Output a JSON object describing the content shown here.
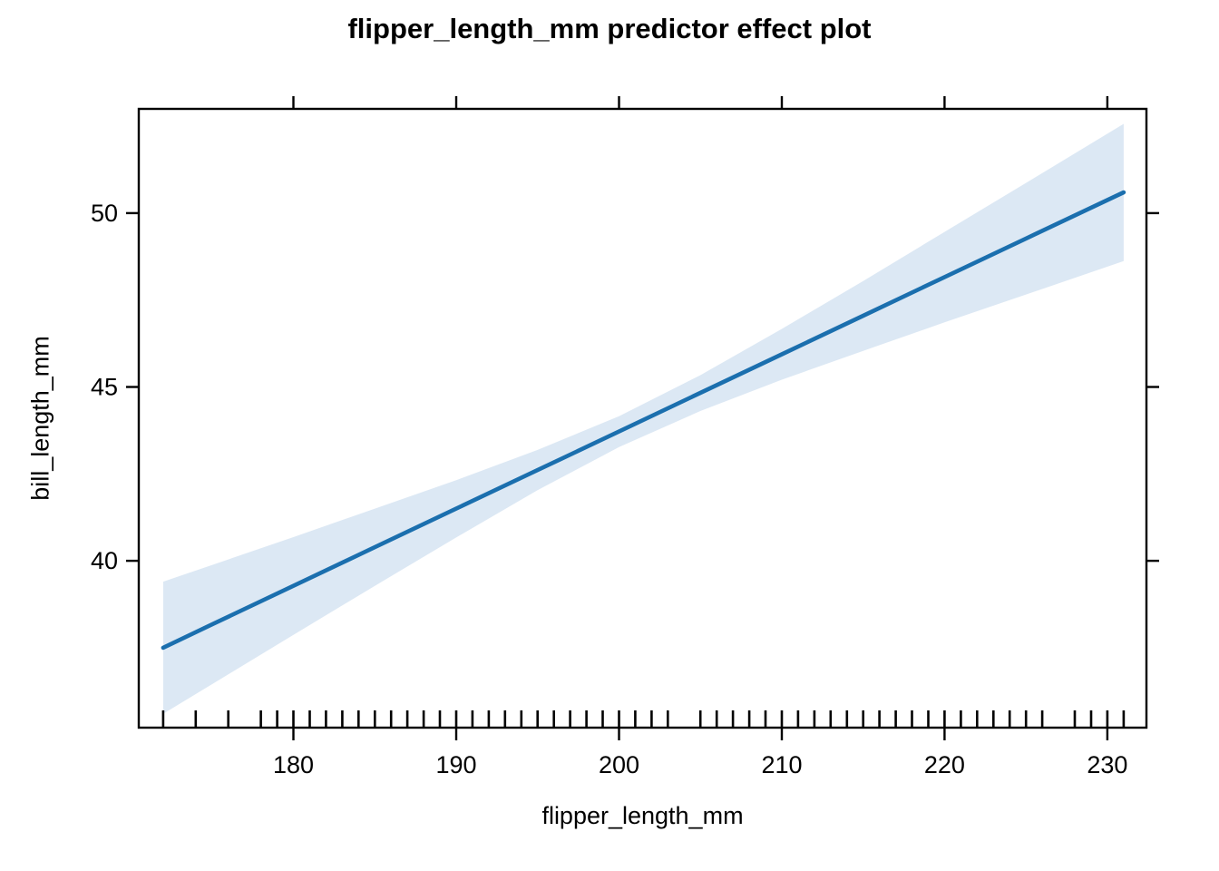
{
  "chart_data": {
    "type": "line",
    "title": "flipper_length_mm predictor effect plot",
    "xlabel": "flipper_length_mm",
    "ylabel": "bill_length_mm",
    "xlim": [
      170.5,
      232.4
    ],
    "ylim": [
      35.2,
      53.0
    ],
    "x_ticks": [
      180,
      190,
      200,
      210,
      220,
      230
    ],
    "y_ticks": [
      40,
      45,
      50
    ],
    "grid": false,
    "legend_position": "none",
    "axes_style": "box-with-outward-ticks, unlabeled mirrored ticks on top and right",
    "series": [
      {
        "name": "fitted-effect-line",
        "type": "line",
        "x": [
          172,
          175,
          180,
          185,
          190,
          195,
          200,
          205,
          210,
          215,
          220,
          225,
          231
        ],
        "y": [
          37.5,
          38.17,
          39.28,
          40.39,
          41.5,
          42.61,
          43.72,
          44.83,
          45.94,
          47.05,
          48.16,
          49.27,
          50.6
        ]
      }
    ],
    "confidence_band": {
      "x": [
        172,
        175,
        180,
        185,
        190,
        195,
        200,
        205,
        210,
        215,
        220,
        225,
        231
      ],
      "lower": [
        35.6,
        36.45,
        37.87,
        39.28,
        40.67,
        42.03,
        43.27,
        44.31,
        45.21,
        46.04,
        46.86,
        47.66,
        48.62
      ],
      "upper": [
        39.4,
        39.88,
        40.68,
        41.5,
        42.32,
        43.19,
        44.16,
        45.34,
        46.67,
        48.05,
        49.46,
        50.87,
        52.57
      ]
    },
    "rug_x": [
      172,
      174,
      176,
      178,
      179,
      180,
      181,
      182,
      183,
      184,
      185,
      186,
      187,
      188,
      189,
      190,
      191,
      192,
      193,
      194,
      195,
      196,
      197,
      198,
      199,
      200,
      201,
      202,
      203,
      205,
      206,
      207,
      208,
      209,
      210,
      211,
      212,
      213,
      214,
      215,
      216,
      217,
      218,
      219,
      220,
      221,
      222,
      223,
      224,
      225,
      226,
      228,
      229,
      230,
      231
    ],
    "colors": {
      "line": "#1b6fae",
      "band": "#dce8f4",
      "axis": "#000000",
      "text": "#000000",
      "background": "#ffffff"
    }
  }
}
